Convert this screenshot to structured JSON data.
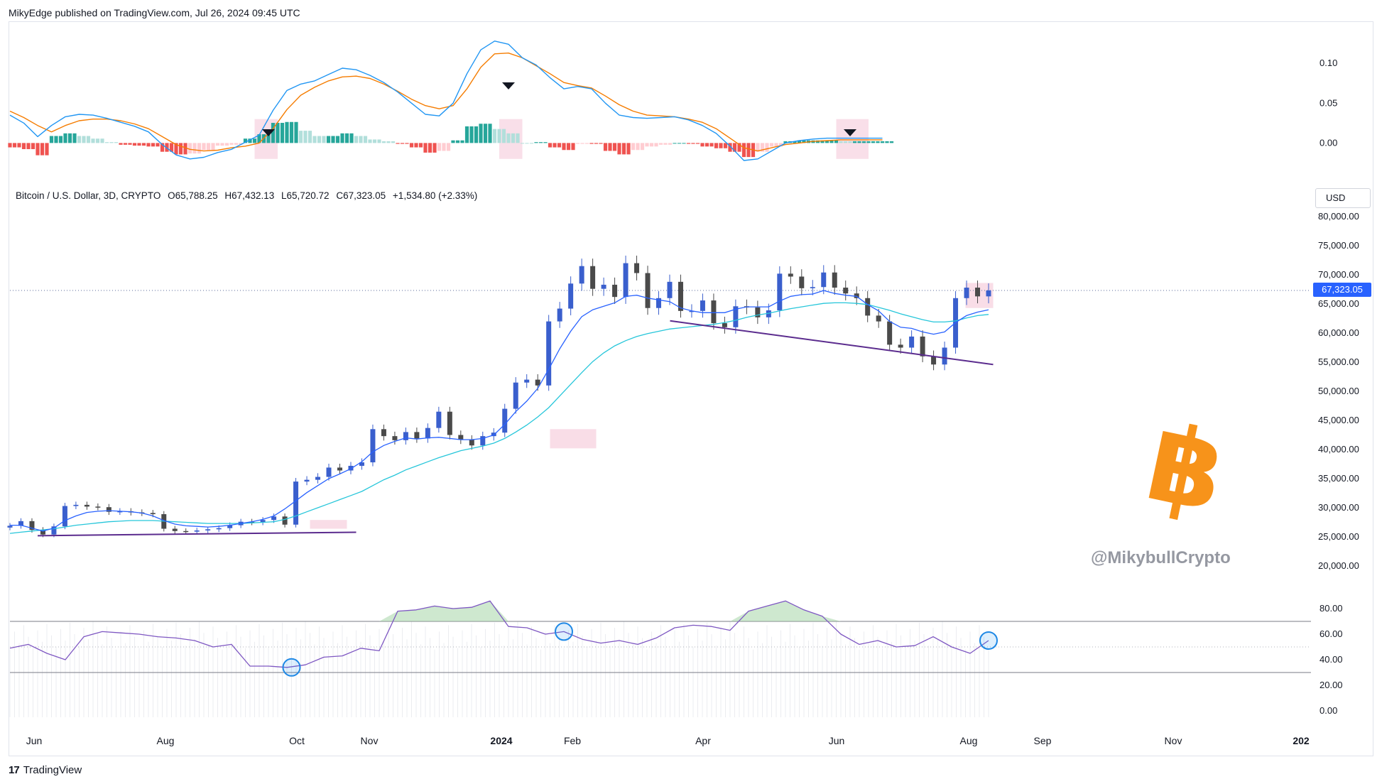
{
  "attribution": "MikyEdge published on TradingView.com, Jul 26, 2024 09:45 UTC",
  "footer": {
    "brand": "TradingView",
    "logo_icon": "tradingview-logo-icon"
  },
  "symbol_legend": {
    "name": "Bitcoin / U.S. Dollar, 3D, CRYPTO",
    "open": "O65,788.25",
    "high": "H67,432.13",
    "low": "L65,720.72",
    "close": "C67,323.05",
    "change": "+1,534.80 (+2.33%)"
  },
  "currency": "USD",
  "last_price_label": "67,323.05",
  "watermark": "@MikybullCrypto",
  "logo_glyph": "฿",
  "colors": {
    "bull": "#3a5fcd",
    "bear": "#4a4a4a",
    "ma_fast": "#2962ff",
    "ma_slow": "#26c6da",
    "trendline": "#5b2c8e",
    "macd": "#2196f3",
    "signal": "#f57c00",
    "hist_up_strong": "#26a69a",
    "hist_up_weak": "#b2dfdb",
    "hist_down_strong": "#ef5350",
    "hist_down_weak": "#ffcdd2",
    "rsi": "#7e57c2",
    "highlight": "#f8d7e3",
    "btc": "#f7931a"
  },
  "chart_data": [
    {
      "type": "line",
      "panel": "macd",
      "yticks": [
        "0.10",
        "0.05",
        "0.00"
      ],
      "ylim": [
        -0.03,
        0.135
      ],
      "x": [
        0,
        3,
        6,
        9,
        12,
        15,
        18,
        21,
        24,
        27,
        30,
        33,
        36,
        39,
        42,
        45,
        48,
        51,
        54,
        57,
        60,
        63,
        66,
        69,
        72,
        75,
        78,
        81,
        84,
        87,
        90,
        93,
        96,
        99,
        102,
        105,
        108,
        111,
        114,
        117,
        120,
        123,
        126,
        129,
        132,
        135,
        138,
        141,
        144,
        147,
        150,
        153,
        156,
        159,
        162,
        165,
        168,
        171,
        174,
        177,
        180,
        183,
        186,
        189
      ],
      "series": [
        {
          "values": [
            0.035,
            0.025,
            0.008,
            0.022,
            0.033,
            0.036,
            0.035,
            0.031,
            0.026,
            0.021,
            0.014,
            -0.002,
            -0.015,
            -0.02,
            -0.018,
            -0.012,
            -0.008,
            0.001,
            0.01,
            0.041,
            0.066,
            0.074,
            0.078,
            0.086,
            0.094,
            0.092,
            0.085,
            0.076,
            0.064,
            0.05,
            0.036,
            0.034,
            0.05,
            0.087,
            0.117,
            0.128,
            0.124,
            0.107,
            0.098,
            0.082,
            0.068,
            0.071,
            0.068,
            0.05,
            0.035,
            0.032,
            0.031,
            0.032,
            0.033,
            0.029,
            0.022,
            0.012,
            -0.004,
            -0.022,
            -0.02,
            -0.01,
            0.0,
            0.003,
            0.005,
            0.006,
            0.006,
            0.006,
            0.006,
            0.006
          ]
        },
        {
          "values": [
            0.04,
            0.032,
            0.022,
            0.014,
            0.022,
            0.028,
            0.03,
            0.03,
            0.028,
            0.024,
            0.018,
            0.008,
            -0.002,
            -0.008,
            -0.01,
            -0.009,
            -0.006,
            -0.004,
            0.0,
            0.018,
            0.042,
            0.06,
            0.07,
            0.078,
            0.083,
            0.084,
            0.081,
            0.074,
            0.065,
            0.055,
            0.047,
            0.043,
            0.047,
            0.068,
            0.095,
            0.112,
            0.113,
            0.107,
            0.097,
            0.087,
            0.076,
            0.072,
            0.069,
            0.059,
            0.048,
            0.04,
            0.035,
            0.034,
            0.033,
            0.03,
            0.026,
            0.018,
            0.006,
            -0.006,
            -0.01,
            -0.006,
            -0.002,
            0.0,
            0.002,
            0.003,
            0.004,
            0.004,
            0.004,
            0.004
          ]
        }
      ],
      "signal_markers_x": [
        56,
        108,
        182
      ],
      "highlight_x_ranges": [
        [
          53,
          58
        ],
        [
          106,
          111
        ],
        [
          179,
          186
        ]
      ]
    },
    {
      "type": "candlestick",
      "panel": "price",
      "ylim": [
        20000,
        80000
      ],
      "yticks": [
        "80,000.00",
        "75,000.00",
        "70,000.00",
        "65,000.00",
        "60,000.00",
        "55,000.00",
        "50,000.00",
        "45,000.00",
        "40,000.00",
        "35,000.00",
        "30,000.00",
        "25,000.00",
        "20,000.00"
      ],
      "last_price": 67323.05,
      "close": [
        26900,
        27700,
        26200,
        25400,
        26800,
        30300,
        30500,
        30200,
        30100,
        29300,
        29400,
        29200,
        29100,
        28900,
        26400,
        26000,
        25900,
        26100,
        26300,
        26500,
        27000,
        27600,
        27500,
        27900,
        28500,
        27100,
        34500,
        34800,
        35300,
        36900,
        36400,
        37200,
        37800,
        43500,
        42300,
        41600,
        43000,
        41900,
        43700,
        46500,
        42500,
        41700,
        40700,
        42300,
        42900,
        47000,
        51500,
        52000,
        51000,
        62000,
        64200,
        68500,
        71500,
        67600,
        68300,
        66200,
        72000,
        70300,
        64300,
        66000,
        68800,
        63800,
        63800,
        65600,
        61700,
        61000,
        64600,
        64400,
        62700,
        63900,
        70200,
        69700,
        67700,
        67900,
        70400,
        67800,
        66800,
        66000,
        63000,
        62000,
        58000,
        57500,
        59400,
        56000,
        54600,
        57500,
        66000,
        67800,
        66300,
        67323
      ],
      "x": [
        0,
        2,
        4,
        6,
        8,
        10,
        12,
        14,
        16,
        18,
        20,
        22,
        24,
        26,
        28,
        30,
        32,
        34,
        36,
        38,
        40,
        42,
        44,
        46,
        48,
        50,
        52,
        54,
        56,
        58,
        60,
        62,
        64,
        66,
        68,
        70,
        72,
        74,
        76,
        78,
        80,
        82,
        84,
        86,
        88,
        90,
        92,
        94,
        96,
        98,
        100,
        102,
        104,
        106,
        108,
        110,
        112,
        114,
        116,
        118,
        120,
        122,
        124,
        126,
        128,
        130,
        132,
        134,
        136,
        138,
        140,
        142,
        144,
        146,
        148,
        150,
        152,
        154,
        156,
        158,
        160,
        162,
        164,
        166,
        168,
        170,
        172,
        174,
        176,
        178
      ],
      "ma_fast": [
        27000,
        27000,
        26500,
        26000,
        26500,
        27800,
        28600,
        29200,
        29400,
        29500,
        29400,
        29300,
        29100,
        28600,
        27800,
        27200,
        26900,
        26800,
        26700,
        26800,
        27000,
        27300,
        27600,
        28000,
        28600,
        29800,
        31200,
        32600,
        33800,
        35000,
        35800,
        36700,
        37900,
        39600,
        40700,
        41400,
        42000,
        41800,
        42000,
        42100,
        41900,
        41700,
        41700,
        41900,
        42500,
        44300,
        46500,
        48300,
        50500,
        53800,
        57300,
        60300,
        62800,
        64000,
        64600,
        65200,
        66300,
        66500,
        66000,
        65700,
        65400,
        64300,
        63800,
        63500,
        63500,
        63500,
        64100,
        64500,
        64500,
        64500,
        65500,
        66300,
        66600,
        66700,
        67300,
        66800,
        66500,
        66300,
        64900,
        63800,
        62000,
        61000,
        60800,
        60200,
        59800,
        60200,
        61800,
        63000,
        63600,
        64000
      ],
      "ma_slow": [
        25600,
        25800,
        26000,
        26200,
        26400,
        26700,
        27000,
        27200,
        27400,
        27600,
        27700,
        27800,
        27800,
        27800,
        27700,
        27600,
        27500,
        27400,
        27300,
        27300,
        27300,
        27300,
        27400,
        27500,
        27600,
        28000,
        28600,
        29300,
        30000,
        30700,
        31400,
        32100,
        32800,
        33800,
        34800,
        35600,
        36500,
        37200,
        37900,
        38600,
        39200,
        39800,
        40200,
        40600,
        41100,
        41900,
        43000,
        44200,
        45600,
        47200,
        49200,
        51200,
        53200,
        55100,
        56600,
        57800,
        58700,
        59400,
        59900,
        60300,
        60700,
        60900,
        61100,
        61300,
        61500,
        61800,
        62200,
        62700,
        63100,
        63400,
        63800,
        64200,
        64500,
        64800,
        65100,
        65200,
        65200,
        65100,
        64900,
        64400,
        63900,
        63300,
        62800,
        62300,
        61900,
        61900,
        62100,
        62600,
        63000,
        63200
      ],
      "trendlines": [
        {
          "x": [
            6,
            75
          ],
          "y": [
            25200,
            25800
          ]
        },
        {
          "x": [
            143,
            213
          ],
          "y": [
            62100,
            54600
          ]
        }
      ],
      "highlight_x_ranges": [
        [
          65,
          73
        ],
        [
          117,
          127
        ],
        [
          207,
          213
        ]
      ]
    },
    {
      "type": "line",
      "panel": "rsi",
      "ylim": [
        -5,
        95
      ],
      "yticks": [
        "80.00",
        "60.00",
        "40.00",
        "20.00",
        "0.00"
      ],
      "bands": [
        70,
        30,
        50
      ],
      "x": [
        0,
        4,
        8,
        12,
        16,
        20,
        24,
        28,
        32,
        36,
        40,
        44,
        48,
        52,
        56,
        60,
        64,
        68,
        72,
        76,
        80,
        84,
        88,
        92,
        96,
        100,
        104,
        108,
        112,
        116,
        120,
        124,
        128,
        132,
        136,
        140,
        144,
        148,
        152,
        156,
        160,
        164,
        168,
        172,
        176,
        180,
        184,
        188,
        192,
        196,
        200,
        204,
        208,
        212
      ],
      "values": [
        49,
        52,
        45,
        40,
        58,
        62,
        61,
        60,
        58,
        57,
        55,
        50,
        52,
        35,
        35,
        34,
        36,
        42,
        43,
        49,
        47,
        78,
        79,
        82,
        80,
        81,
        86,
        66,
        65,
        60,
        62,
        56,
        53,
        55,
        52,
        57,
        65,
        67,
        66,
        63,
        78,
        82,
        86,
        79,
        74,
        60,
        52,
        55,
        50,
        51,
        58,
        50,
        45,
        55
      ],
      "circled_x": [
        61,
        120,
        212
      ]
    }
  ],
  "x_axis": {
    "labels": [
      "Jun",
      "Aug",
      "Oct",
      "Nov",
      "2024",
      "Feb",
      "Apr",
      "Jun",
      "Aug",
      "Sep",
      "Nov",
      "202"
    ],
    "bold": [
      false,
      false,
      false,
      false,
      true,
      false,
      false,
      false,
      false,
      false,
      false,
      true
    ]
  }
}
